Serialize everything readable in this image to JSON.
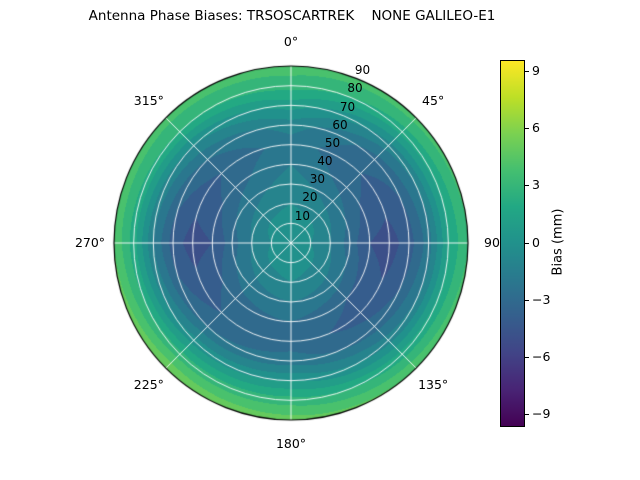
{
  "title": "Antenna Phase Biases: TRSOSCARTREK    NONE GALILEO-E1",
  "chart_data": {
    "type": "heatmap",
    "projection": "polar",
    "title": "Antenna Phase Biases: TRSOSCARTREK    NONE GALILEO-E1",
    "angular_ticks": [
      "0°",
      "45°",
      "90",
      "135°",
      "180°",
      "225°",
      "270°",
      "315°"
    ],
    "angular_tick_degrees": [
      0,
      45,
      90,
      135,
      180,
      225,
      270,
      315
    ],
    "radial_ticks": [
      "10",
      "20",
      "30",
      "40",
      "50",
      "60",
      "70",
      "80",
      "90"
    ],
    "radial_tick_values": [
      10,
      20,
      30,
      40,
      50,
      60,
      70,
      80,
      90
    ],
    "radial_label_azimuth_deg": 22.5,
    "radius_max": 90,
    "colormap": "viridis",
    "vmin": -9.6,
    "vmax": 9.6,
    "contour_step": 1,
    "grid_color": "rgba(255,255,255,0.9)",
    "azimuth_deg": [
      0,
      45,
      90,
      135,
      180,
      225,
      270,
      315,
      360
    ],
    "radius": [
      0,
      10,
      20,
      30,
      40,
      50,
      60,
      70,
      80,
      90
    ],
    "values_bias_mm": [
      [
        0.0,
        0.0,
        -0.5,
        -1.0,
        -1.5,
        -2.0,
        -1.0,
        1.0,
        3.0,
        4.0
      ],
      [
        0.0,
        0.0,
        -1.0,
        -2.0,
        -3.0,
        -3.5,
        -3.0,
        -1.0,
        2.0,
        4.0
      ],
      [
        0.0,
        -0.5,
        -1.5,
        -3.0,
        -4.5,
        -5.0,
        -4.0,
        -2.0,
        1.5,
        3.5
      ],
      [
        0.0,
        0.0,
        -1.0,
        -2.0,
        -3.5,
        -4.0,
        -3.0,
        -1.0,
        2.0,
        4.5
      ],
      [
        0.0,
        0.0,
        -0.5,
        -1.5,
        -2.5,
        -3.0,
        -2.0,
        0.5,
        3.0,
        5.0
      ],
      [
        0.0,
        0.0,
        -1.0,
        -2.0,
        -3.0,
        -3.5,
        -2.5,
        0.0,
        3.0,
        5.5
      ],
      [
        0.0,
        -0.5,
        -1.5,
        -3.0,
        -4.5,
        -5.0,
        -4.0,
        -1.5,
        2.0,
        4.5
      ],
      [
        0.0,
        0.0,
        -1.0,
        -2.0,
        -3.0,
        -3.5,
        -2.5,
        -0.5,
        2.5,
        4.0
      ],
      [
        0.0,
        0.0,
        -0.5,
        -1.0,
        -1.5,
        -2.0,
        -1.0,
        1.0,
        3.0,
        4.0
      ]
    ],
    "colorbar": {
      "label": "Bias (mm)",
      "tick_labels": [
        "9",
        "6",
        "3",
        "0",
        "−3",
        "−6",
        "−9"
      ],
      "tick_values": [
        9,
        6,
        3,
        0,
        -3,
        -6,
        -9
      ]
    },
    "viridis_stops": [
      {
        "t": 0.0,
        "color": "#440154"
      },
      {
        "t": 0.1,
        "color": "#482475"
      },
      {
        "t": 0.2,
        "color": "#414487"
      },
      {
        "t": 0.3,
        "color": "#355f8d"
      },
      {
        "t": 0.4,
        "color": "#2a788e"
      },
      {
        "t": 0.5,
        "color": "#21918c"
      },
      {
        "t": 0.6,
        "color": "#22a884"
      },
      {
        "t": 0.7,
        "color": "#44bf70"
      },
      {
        "t": 0.8,
        "color": "#7ad151"
      },
      {
        "t": 0.9,
        "color": "#bddf26"
      },
      {
        "t": 1.0,
        "color": "#fde725"
      }
    ]
  }
}
